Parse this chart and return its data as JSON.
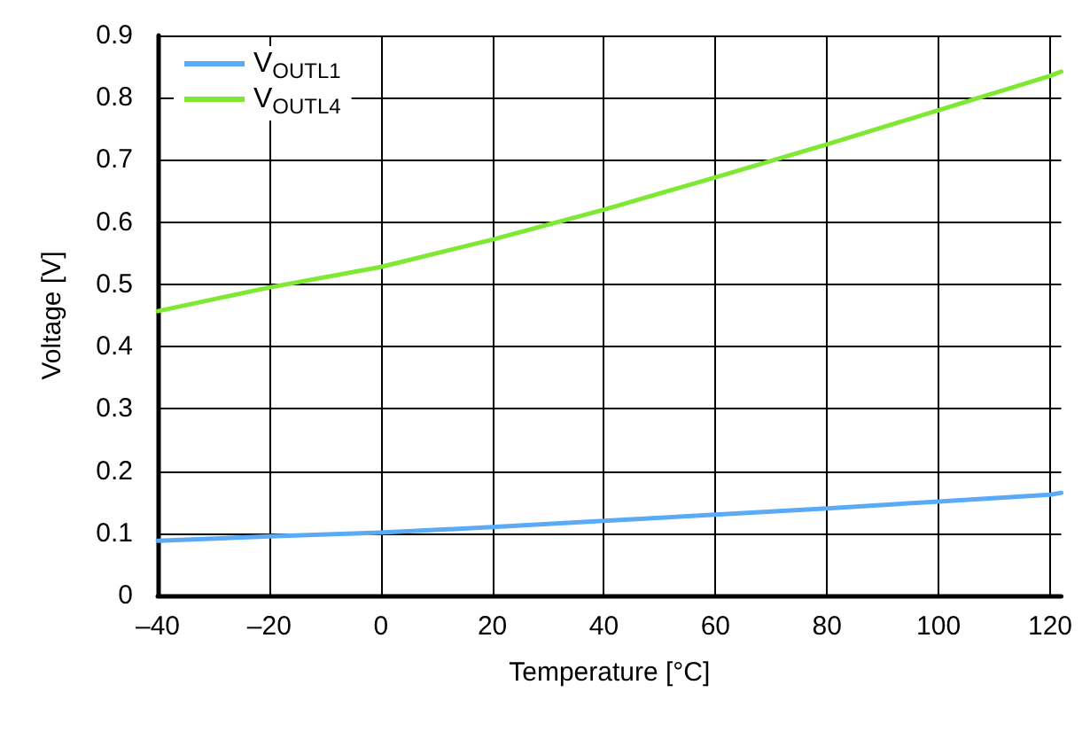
{
  "chart_data": {
    "type": "line",
    "xlabel": "Temperature [°C]",
    "ylabel": "Voltage [V]",
    "x": [
      -40,
      -20,
      0,
      20,
      40,
      60,
      80,
      100,
      120,
      122
    ],
    "series": [
      {
        "name": "V$_{OUTL1}$",
        "color": "#5aaaf5",
        "values": [
          0.088,
          0.095,
          0.101,
          0.11,
          0.12,
          0.13,
          0.14,
          0.151,
          0.162,
          0.165
        ]
      },
      {
        "name": "V$_{OUTL4}$",
        "color": "#7ee832",
        "values": [
          0.457,
          0.495,
          0.528,
          0.572,
          0.62,
          0.672,
          0.725,
          0.78,
          0.835,
          0.842
        ]
      }
    ],
    "xlim": [
      -40,
      122
    ],
    "xticks": [
      {
        "value": -40,
        "label": "–40"
      },
      {
        "value": -20,
        "label": "–20"
      },
      0,
      20,
      40,
      60,
      80,
      100,
      120
    ],
    "ylim": [
      0,
      0.9
    ],
    "yticks": [
      0,
      0.1,
      0.2,
      0.3,
      0.4,
      0.5,
      0.6,
      0.7,
      0.8,
      0.9
    ],
    "grid": true,
    "legend": "top left",
    "marker": "none",
    "line_style": "solid"
  }
}
